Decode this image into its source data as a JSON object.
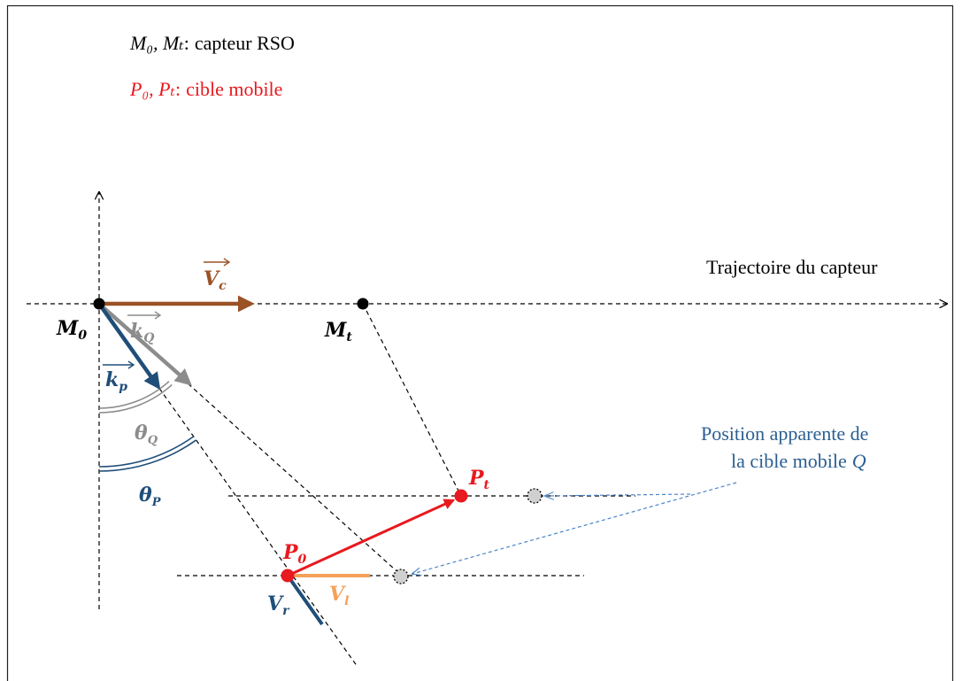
{
  "legend": {
    "sensor": {
      "symbols": "M₀, Mₜ",
      "separator": ":",
      "text": "capteur RSO",
      "color": "#000000"
    },
    "target": {
      "symbols": "P₀, Pₜ",
      "separator": ":",
      "text": "cible mobile",
      "color": "#e8191f"
    }
  },
  "labels": {
    "trajectory": "Trajectoire du capteur",
    "apparent_line1": "Position apparente de",
    "apparent_line2": "la cible mobile",
    "apparent_symbol": "Q"
  },
  "points": {
    "m0": "M",
    "m0_sub": "0",
    "mt": "M",
    "mt_sub": "t",
    "p0": "P",
    "p0_sub": "0",
    "pt": "P",
    "pt_sub": "t"
  },
  "vectors": {
    "vc": "V",
    "vc_sub": "c",
    "kq": "k",
    "kq_sub": "Q",
    "kp": "k",
    "kp_sub": "p",
    "vr": "V",
    "vr_sub": "r",
    "vl": "V",
    "vl_sub": "l"
  },
  "angles": {
    "theta_q": "θ",
    "theta_q_sub": "Q",
    "theta_p": "θ",
    "theta_p_sub": "P"
  },
  "colors": {
    "frame": "#222222",
    "brown": "#9a5226",
    "blue": "#1f4e79",
    "gray": "#8c8c8c",
    "red": "#e8191f",
    "orange": "#f4a15a",
    "apparent_text": "#2b5f91",
    "apparent_arrow": "#4a86c8",
    "ghost_fill": "#d0d0d0"
  }
}
